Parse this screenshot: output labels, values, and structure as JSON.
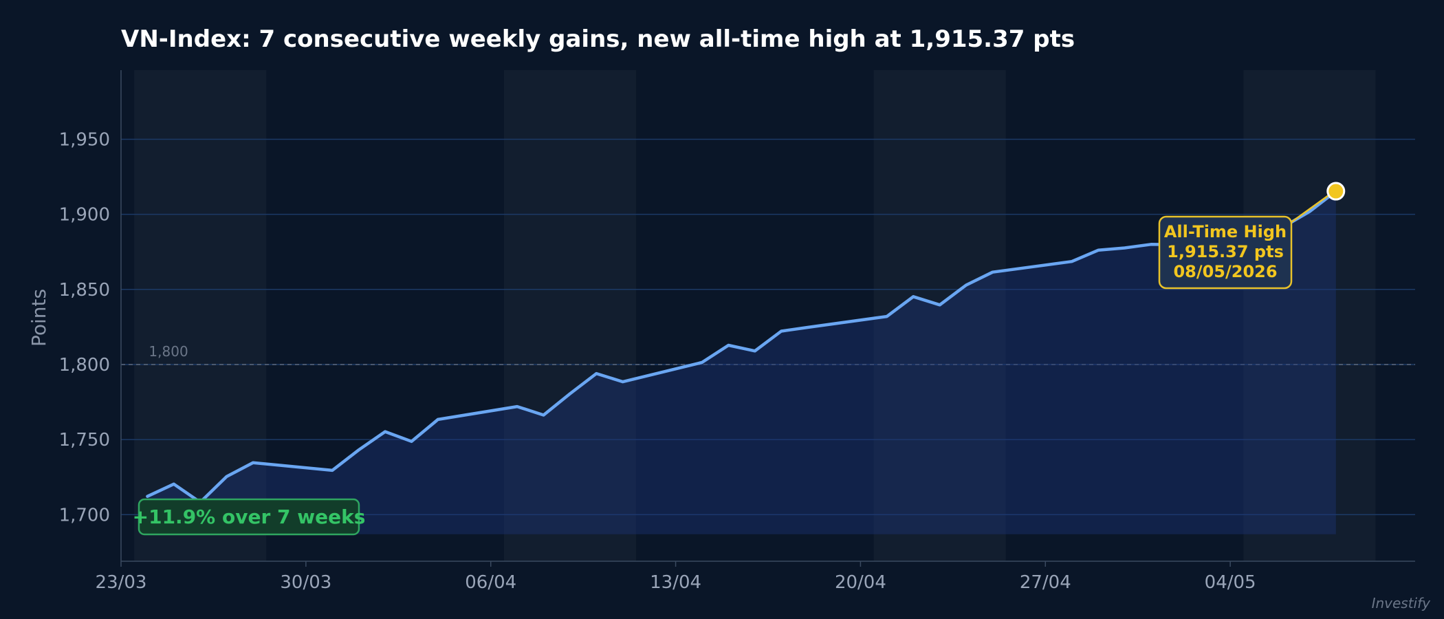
{
  "chart_data": {
    "type": "line",
    "title": "VN-Index: 7 consecutive weekly gains, new all-time high at 1,915.37 pts",
    "xlabel": "",
    "ylabel": "Points",
    "ylim": [
      1669,
      1996
    ],
    "yticks": [
      1700,
      1750,
      1800,
      1850,
      1900,
      1950
    ],
    "ytick_labels": [
      "1,700",
      "1,750",
      "1,800",
      "1,850",
      "1,900",
      "1,950"
    ],
    "xlim": [
      "2026-03-23",
      "2026-05-11"
    ],
    "xticks": [
      "2026-03-23",
      "2026-03-30",
      "2026-04-06",
      "2026-04-13",
      "2026-04-20",
      "2026-04-27",
      "2026-05-04"
    ],
    "xtick_labels": [
      "23/03",
      "30/03",
      "06/04",
      "13/04",
      "20/04",
      "27/04",
      "04/05"
    ],
    "grid": true,
    "weekly_bands": [
      [
        "2026-03-24",
        "2026-03-28"
      ],
      [
        "2026-04-07",
        "2026-04-11"
      ],
      [
        "2026-04-21",
        "2026-04-25"
      ],
      [
        "2026-05-05",
        "2026-05-09"
      ]
    ],
    "series": [
      {
        "color": "#6aa6f2",
        "x": [
          "2026-03-24",
          "2026-03-25",
          "2026-03-26",
          "2026-03-27",
          "2026-03-28",
          "2026-03-31",
          "2026-04-01",
          "2026-04-02",
          "2026-04-03",
          "2026-04-04",
          "2026-04-07",
          "2026-04-08",
          "2026-04-09",
          "2026-04-10",
          "2026-04-11",
          "2026-04-14",
          "2026-04-15",
          "2026-04-16",
          "2026-04-17",
          "2026-04-18",
          "2026-04-21",
          "2026-04-22",
          "2026-04-23",
          "2026-04-24",
          "2026-04-25",
          "2026-04-28",
          "2026-04-29",
          "2026-04-30",
          "2026-05-01",
          "2026-05-02",
          "2026-05-05",
          "2026-05-06",
          "2026-05-07",
          "2026-05-08"
        ],
        "values": [
          1712.2,
          1720.4,
          1708.3,
          1725.4,
          1734.6,
          1729.5,
          1743.1,
          1755.3,
          1748.8,
          1763.4,
          1772.0,
          1766.3,
          1780.5,
          1794.0,
          1788.5,
          1801.4,
          1812.8,
          1809.0,
          1822.2,
          1824.7,
          1832.0,
          1845.2,
          1839.7,
          1852.9,
          1861.5,
          1868.6,
          1876.1,
          1877.6,
          1880.0,
          1879.8,
          1877.5,
          1891.6,
          1901.8,
          1915.37
        ]
      }
    ],
    "reference_line": {
      "value": 1800,
      "label": "1,800",
      "color": "#6b7688"
    },
    "annotations": {
      "ath": {
        "date": "2026-05-08",
        "value": 1915.37,
        "lines": [
          "All-Time High",
          "1,915.37 pts",
          "08/05/2026"
        ],
        "color": "#f2c61f"
      },
      "gain": {
        "text": "+11.9% over 7 weeks",
        "color": "#34c466"
      }
    },
    "area_fill_base": 1687,
    "colors": {
      "background": "#0a1628",
      "grid": "#1c3a66",
      "line": "#6aa6f2",
      "area": "#1c3478"
    },
    "watermark": "Investify"
  }
}
